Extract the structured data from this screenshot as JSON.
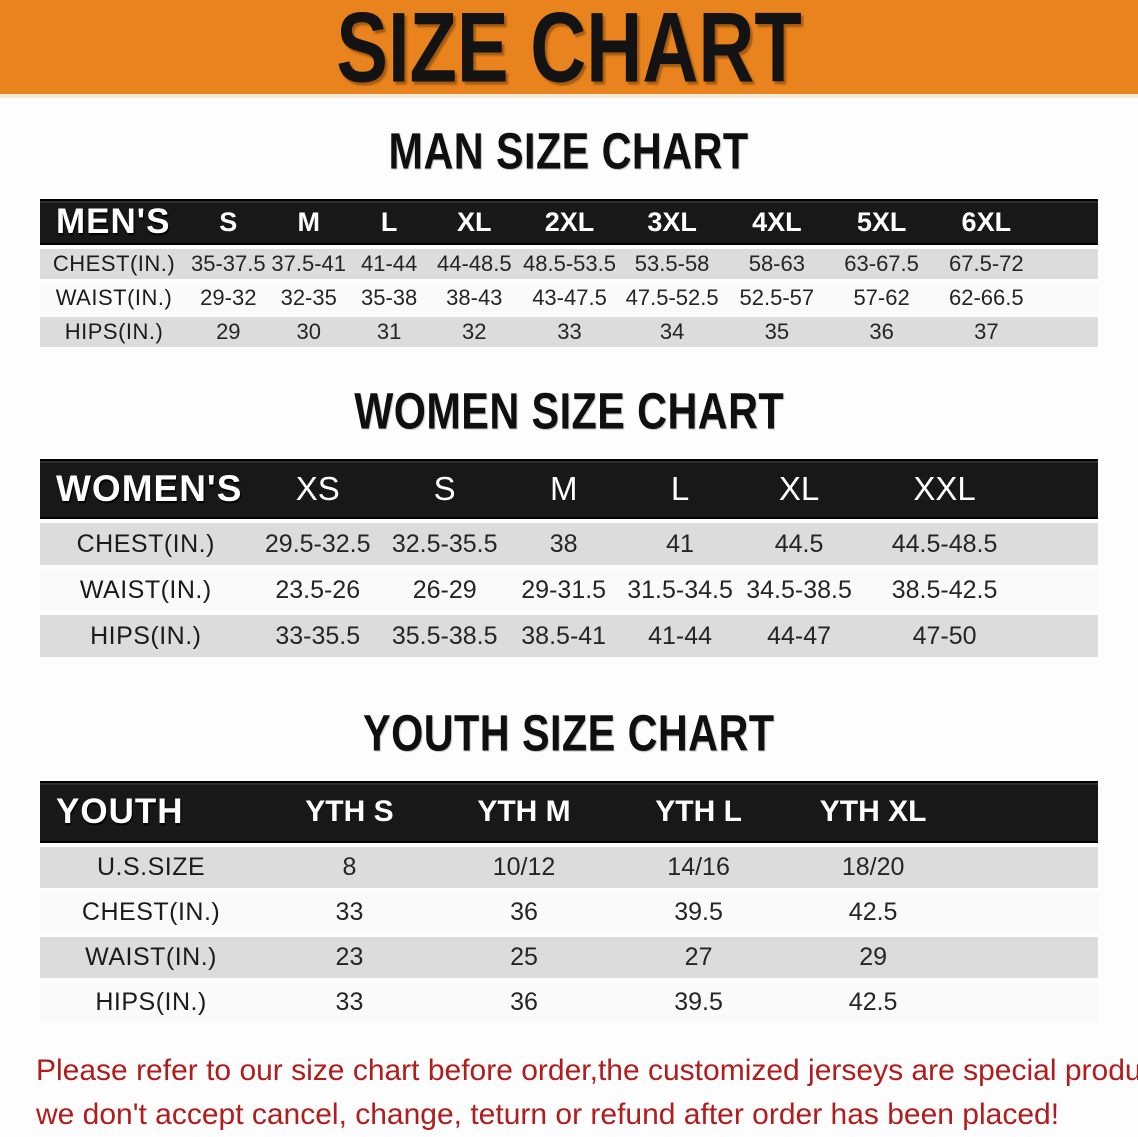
{
  "banner": {
    "title": "SIZE CHART"
  },
  "sections": [
    {
      "id": "men",
      "title": "MAN SIZE CHART",
      "table": {
        "corner_label": "MEN'S",
        "sizes": [
          "S",
          "M",
          "L",
          "XL",
          "2XL",
          "3XL",
          "4XL",
          "5XL",
          "6XL"
        ],
        "rows": [
          {
            "label": "CHEST(IN.)",
            "values": [
              "35-37.5",
              "37.5-41",
              "41-44",
              "44-48.5",
              "48.5-53.5",
              "53.5-58",
              "58-63",
              "63-67.5",
              "67.5-72"
            ]
          },
          {
            "label": "WAIST(IN.)",
            "values": [
              "29-32",
              "32-35",
              "35-38",
              "38-43",
              "43-47.5",
              "47.5-52.5",
              "52.5-57",
              "57-62",
              "62-66.5"
            ]
          },
          {
            "label": "HIPS(IN.)",
            "values": [
              "29",
              "30",
              "31",
              "32",
              "33",
              "34",
              "35",
              "36",
              "37"
            ]
          }
        ]
      }
    },
    {
      "id": "women",
      "title": "WOMEN SIZE CHART",
      "table": {
        "corner_label": "WOMEN'S",
        "sizes": [
          "XS",
          "S",
          "M",
          "L",
          "XL",
          "XXL"
        ],
        "rows": [
          {
            "label": "CHEST(IN.)",
            "values": [
              "29.5-32.5",
              "32.5-35.5",
              "38",
              "41",
              "44.5",
              "44.5-48.5"
            ]
          },
          {
            "label": "WAIST(IN.)",
            "values": [
              "23.5-26",
              "26-29",
              "29-31.5",
              "31.5-34.5",
              "34.5-38.5",
              "38.5-42.5"
            ]
          },
          {
            "label": "HIPS(IN.)",
            "values": [
              "33-35.5",
              "35.5-38.5",
              "38.5-41",
              "41-44",
              "44-47",
              "47-50"
            ]
          }
        ]
      }
    },
    {
      "id": "youth",
      "title": "YOUTH SIZE CHART",
      "table": {
        "corner_label": "YOUTH",
        "sizes": [
          "YTH S",
          "YTH M",
          "YTH L",
          "YTH XL"
        ],
        "rows": [
          {
            "label": "U.S.SIZE",
            "values": [
              "8",
              "10/12",
              "14/16",
              "18/20"
            ]
          },
          {
            "label": "CHEST(IN.)",
            "values": [
              "33",
              "36",
              "39.5",
              "42.5"
            ]
          },
          {
            "label": "WAIST(IN.)",
            "values": [
              "23",
              "25",
              "27",
              "29"
            ]
          },
          {
            "label": "HIPS(IN.)",
            "values": [
              "33",
              "36",
              "39.5",
              "42.5"
            ]
          }
        ]
      }
    }
  ],
  "note": {
    "lines": [
      "Please refer to our size chart before order,the customized jerseys are special products,",
      "we don't accept cancel, change, teturn or refund after order has been placed!"
    ]
  },
  "colors": {
    "banner_orange": "#e8831d",
    "header_black": "#181818",
    "row_gray": "#dcdcdc",
    "row_white": "#fafafa",
    "note_red": "#b11c1c"
  }
}
